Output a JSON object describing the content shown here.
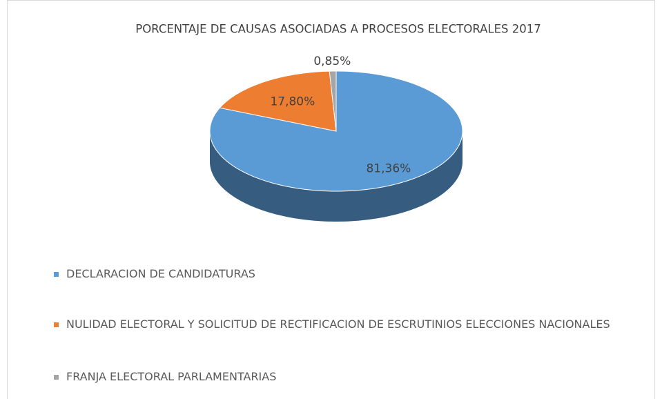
{
  "chart_data": {
    "type": "pie",
    "title": "PORCENTAJE DE CAUSAS ASOCIADAS A PROCESOS ELECTORALES 2017",
    "categories": [
      "DECLARACION DE CANDIDATURAS",
      "NULIDAD ELECTORAL Y SOLICITUD DE RECTIFICACION DE ESCRUTINIOS ELECCIONES NACIONALES",
      "FRANJA ELECTORAL PARLAMENTARIAS"
    ],
    "values": [
      81.36,
      17.8,
      0.85
    ],
    "value_labels": [
      "81,36%",
      "17,80%",
      "0,85%"
    ],
    "colors": [
      "#5b9bd5",
      "#ed7d31",
      "#a5a5a5"
    ],
    "three_d": true
  }
}
